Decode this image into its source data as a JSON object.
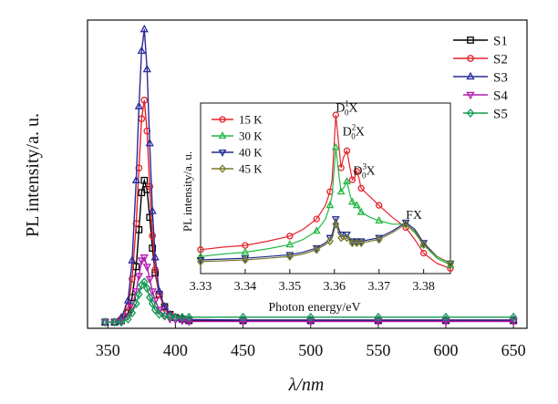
{
  "chart_data": [
    {
      "type": "line",
      "xlabel": "λ/nm",
      "ylabel": "PL  intensity/a. u.",
      "xlim": [
        335,
        660
      ],
      "ylim": [
        0,
        1.0
      ],
      "xticks": [
        "350",
        "400",
        "450",
        "500",
        "550",
        "600",
        "650"
      ],
      "legend_position": "top-right",
      "series": [
        {
          "name": "S1",
          "color": "#000000",
          "marker": "square",
          "x": [
            348,
            355,
            360,
            365,
            368,
            371,
            373,
            375,
            377,
            379,
            381,
            383,
            385,
            388,
            392,
            396,
            400,
            405,
            410,
            450,
            500,
            550,
            600,
            650
          ],
          "y": [
            0.02,
            0.02,
            0.025,
            0.05,
            0.1,
            0.2,
            0.32,
            0.44,
            0.48,
            0.45,
            0.36,
            0.26,
            0.18,
            0.11,
            0.07,
            0.045,
            0.035,
            0.03,
            0.025,
            0.025,
            0.025,
            0.025,
            0.025,
            0.025
          ]
        },
        {
          "name": "S2",
          "color": "#e8222a",
          "marker": "circle",
          "x": [
            348,
            355,
            360,
            365,
            368,
            371,
            373,
            375,
            377,
            379,
            381,
            383,
            385,
            388,
            392,
            396,
            400,
            405,
            410,
            450,
            500,
            550,
            600,
            650
          ],
          "y": [
            0.02,
            0.02,
            0.03,
            0.07,
            0.16,
            0.34,
            0.52,
            0.68,
            0.74,
            0.64,
            0.46,
            0.3,
            0.19,
            0.11,
            0.065,
            0.045,
            0.035,
            0.03,
            0.028,
            0.027,
            0.027,
            0.027,
            0.027,
            0.027
          ]
        },
        {
          "name": "S3",
          "color": "#2a2a9a",
          "marker": "triangle-up",
          "x": [
            348,
            355,
            360,
            365,
            368,
            371,
            373,
            375,
            377,
            379,
            381,
            383,
            385,
            388,
            392,
            396,
            400,
            405,
            410,
            450,
            500,
            550,
            600,
            650
          ],
          "y": [
            0.02,
            0.02,
            0.035,
            0.09,
            0.22,
            0.48,
            0.72,
            0.9,
            0.97,
            0.84,
            0.6,
            0.38,
            0.23,
            0.12,
            0.07,
            0.045,
            0.035,
            0.03,
            0.028,
            0.027,
            0.027,
            0.027,
            0.027,
            0.027
          ]
        },
        {
          "name": "S4",
          "color": "#b11ab1",
          "marker": "triangle-down",
          "x": [
            348,
            355,
            360,
            365,
            368,
            371,
            373,
            375,
            377,
            379,
            381,
            383,
            385,
            388,
            392,
            396,
            400,
            405,
            410,
            450,
            500,
            550,
            600,
            650
          ],
          "y": [
            0.02,
            0.02,
            0.025,
            0.04,
            0.07,
            0.12,
            0.17,
            0.22,
            0.23,
            0.2,
            0.16,
            0.12,
            0.09,
            0.06,
            0.04,
            0.03,
            0.028,
            0.025,
            0.022,
            0.022,
            0.022,
            0.022,
            0.022,
            0.022
          ]
        },
        {
          "name": "S5",
          "color": "#0f9a4f",
          "marker": "diamond",
          "x": [
            348,
            355,
            360,
            365,
            368,
            371,
            373,
            375,
            377,
            379,
            381,
            383,
            385,
            388,
            392,
            396,
            400,
            405,
            410,
            450,
            500,
            550,
            600,
            650
          ],
          "y": [
            0.02,
            0.02,
            0.02,
            0.03,
            0.05,
            0.08,
            0.11,
            0.14,
            0.15,
            0.13,
            0.1,
            0.08,
            0.06,
            0.045,
            0.04,
            0.038,
            0.036,
            0.036,
            0.036,
            0.036,
            0.036,
            0.036,
            0.036,
            0.036
          ]
        }
      ]
    },
    {
      "type": "line",
      "xlabel": "Photon energy/eV",
      "ylabel": "PL  intensity/a. u.",
      "xlim": [
        3.33,
        3.386
      ],
      "ylim": [
        0,
        1.0
      ],
      "xticks": [
        "3.33",
        "3.34",
        "3.35",
        "3.36",
        "3.37",
        "3.38"
      ],
      "legend_position": "top-left",
      "annotations": [
        {
          "text_main": "D",
          "sub": "0",
          "sup": "1",
          "tail": "X",
          "x": 3.3603,
          "y": 0.95
        },
        {
          "text_main": "D",
          "sub": "0",
          "sup": "2",
          "tail": "X",
          "x": 3.3618,
          "y": 0.81
        },
        {
          "text_main": "D",
          "sub": "0",
          "sup": "3",
          "tail": "X",
          "x": 3.3642,
          "y": 0.58
        },
        {
          "text_main": "FX",
          "sub": "",
          "sup": "",
          "tail": "",
          "x": 3.376,
          "y": 0.32
        }
      ],
      "series": [
        {
          "name": "15 K",
          "color": "#e8222a",
          "marker": "circle",
          "x": [
            3.33,
            3.335,
            3.34,
            3.345,
            3.35,
            3.353,
            3.356,
            3.358,
            3.359,
            3.3595,
            3.3603,
            3.361,
            3.3615,
            3.362,
            3.3628,
            3.3635,
            3.364,
            3.3645,
            3.365,
            3.3655,
            3.366,
            3.368,
            3.37,
            3.373,
            3.376,
            3.378,
            3.38,
            3.383,
            3.386
          ],
          "y": [
            0.14,
            0.155,
            0.165,
            0.19,
            0.22,
            0.26,
            0.32,
            0.4,
            0.48,
            0.55,
            0.93,
            0.75,
            0.62,
            0.68,
            0.72,
            0.62,
            0.55,
            0.56,
            0.6,
            0.56,
            0.5,
            0.45,
            0.4,
            0.33,
            0.27,
            0.2,
            0.12,
            0.06,
            0.03
          ]
        },
        {
          "name": "30 K",
          "color": "#25b845",
          "marker": "triangle-up",
          "x": [
            3.33,
            3.335,
            3.34,
            3.345,
            3.35,
            3.353,
            3.356,
            3.358,
            3.359,
            3.3595,
            3.3603,
            3.361,
            3.3615,
            3.362,
            3.3628,
            3.3635,
            3.364,
            3.3645,
            3.365,
            3.3655,
            3.366,
            3.368,
            3.37,
            3.373,
            3.376,
            3.378,
            3.38,
            3.383,
            3.386
          ],
          "y": [
            0.1,
            0.115,
            0.125,
            0.145,
            0.17,
            0.2,
            0.25,
            0.32,
            0.4,
            0.46,
            0.74,
            0.58,
            0.48,
            0.5,
            0.54,
            0.46,
            0.42,
            0.4,
            0.4,
            0.38,
            0.36,
            0.33,
            0.31,
            0.29,
            0.29,
            0.24,
            0.17,
            0.09,
            0.05
          ]
        },
        {
          "name": "40 K",
          "color": "#1f2a8c",
          "marker": "triangle-down",
          "x": [
            3.33,
            3.335,
            3.34,
            3.345,
            3.35,
            3.353,
            3.356,
            3.358,
            3.359,
            3.3595,
            3.3603,
            3.361,
            3.3615,
            3.362,
            3.3628,
            3.3635,
            3.364,
            3.3645,
            3.365,
            3.3655,
            3.366,
            3.368,
            3.37,
            3.373,
            3.376,
            3.378,
            3.38,
            3.383,
            3.386
          ],
          "y": [
            0.08,
            0.085,
            0.09,
            0.1,
            0.11,
            0.125,
            0.15,
            0.18,
            0.21,
            0.23,
            0.32,
            0.26,
            0.23,
            0.22,
            0.23,
            0.2,
            0.19,
            0.19,
            0.19,
            0.19,
            0.19,
            0.2,
            0.21,
            0.25,
            0.3,
            0.26,
            0.18,
            0.1,
            0.06
          ]
        },
        {
          "name": "45 K",
          "color": "#7b7b2a",
          "marker": "diamond",
          "x": [
            3.33,
            3.335,
            3.34,
            3.345,
            3.35,
            3.353,
            3.356,
            3.358,
            3.359,
            3.3595,
            3.3603,
            3.361,
            3.3615,
            3.362,
            3.3628,
            3.3635,
            3.364,
            3.3645,
            3.365,
            3.3655,
            3.366,
            3.368,
            3.37,
            3.373,
            3.376,
            3.378,
            3.38,
            3.383,
            3.386
          ],
          "y": [
            0.07,
            0.075,
            0.08,
            0.09,
            0.1,
            0.115,
            0.14,
            0.17,
            0.19,
            0.21,
            0.29,
            0.24,
            0.21,
            0.2,
            0.21,
            0.19,
            0.18,
            0.18,
            0.18,
            0.18,
            0.18,
            0.19,
            0.2,
            0.24,
            0.29,
            0.25,
            0.17,
            0.1,
            0.06
          ]
        }
      ]
    }
  ]
}
